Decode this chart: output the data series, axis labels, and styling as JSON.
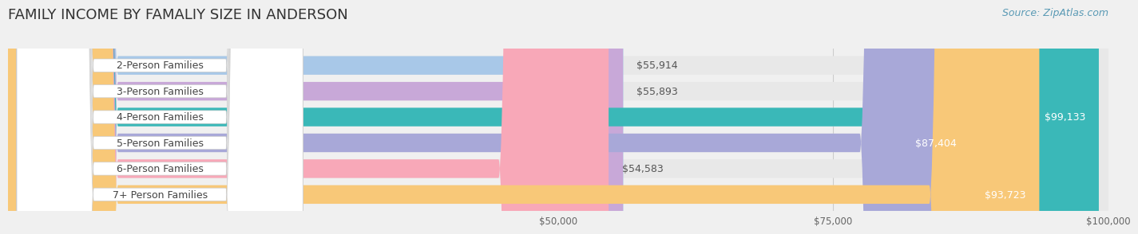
{
  "title": "FAMILY INCOME BY FAMALIY SIZE IN ANDERSON",
  "source": "Source: ZipAtlas.com",
  "categories": [
    "2-Person Families",
    "3-Person Families",
    "4-Person Families",
    "5-Person Families",
    "6-Person Families",
    "7+ Person Families"
  ],
  "values": [
    55914,
    55893,
    99133,
    87404,
    54583,
    93723
  ],
  "bar_colors": [
    "#a8c8e8",
    "#c8a8d8",
    "#3ab8b8",
    "#a8a8d8",
    "#f8a8b8",
    "#f8c878"
  ],
  "label_colors": [
    "#555555",
    "#555555",
    "#ffffff",
    "#ffffff",
    "#555555",
    "#ffffff"
  ],
  "x_max": 100000,
  "x_ticks": [
    50000,
    75000,
    100000
  ],
  "x_tick_labels": [
    "$50,000",
    "$75,000",
    "$100,000"
  ],
  "background_color": "#f0f0f0",
  "bar_background": "#e8e8e8",
  "title_fontsize": 13,
  "source_fontsize": 9,
  "label_fontsize": 9,
  "category_fontsize": 9
}
